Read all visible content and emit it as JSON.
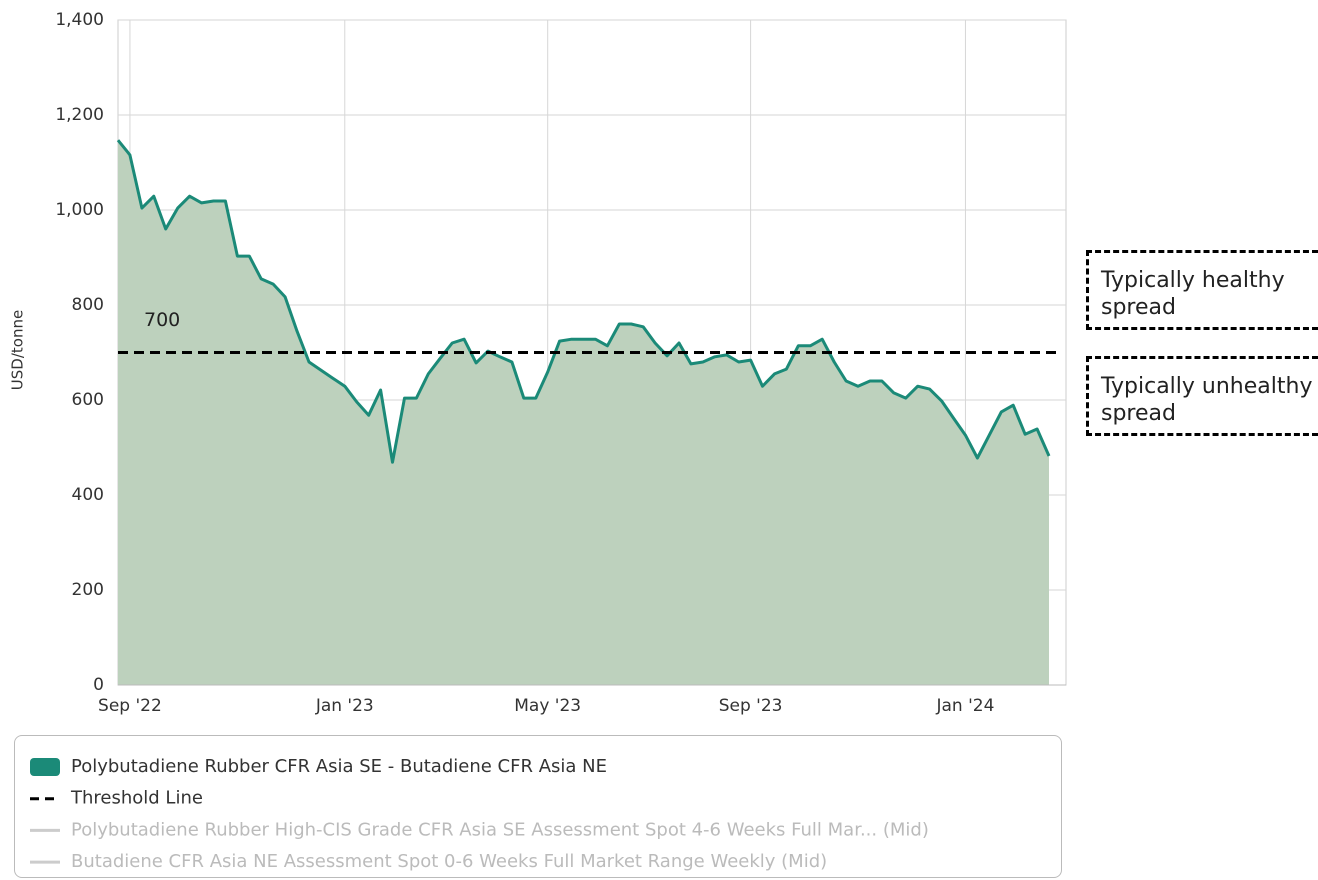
{
  "chart_data": {
    "type": "area",
    "y_label": "USD/tonne",
    "categories": [
      null,
      "Sep '22",
      null,
      null,
      null,
      null,
      null,
      null,
      null,
      null,
      null,
      null,
      null,
      null,
      null,
      null,
      null,
      null,
      null,
      "Jan '23",
      null,
      null,
      null,
      null,
      null,
      null,
      null,
      null,
      null,
      null,
      null,
      null,
      null,
      null,
      null,
      null,
      "May '23",
      null,
      null,
      null,
      null,
      null,
      null,
      null,
      null,
      null,
      null,
      null,
      null,
      null,
      null,
      null,
      null,
      "Sep '23",
      null,
      null,
      null,
      null,
      null,
      null,
      null,
      null,
      null,
      null,
      null,
      null,
      null,
      null,
      null,
      null,
      null,
      "Jan '24",
      null,
      null,
      null,
      null,
      null,
      null,
      null
    ],
    "series": [
      {
        "name": "Polybutadiene Rubber CFR Asia SE - Butadiene CFR Asia NE",
        "color": "#1b8a78",
        "fill": "#bdd1bd",
        "values": [
          1147,
          1116,
          1004,
          1029,
          960,
          1004,
          1029,
          1015,
          1019,
          1019,
          903,
          903,
          855,
          844,
          817,
          745,
          680,
          663,
          646,
          629,
          596,
          568,
          621,
          469,
          604,
          604,
          655,
          688,
          720,
          728,
          678,
          703,
          691,
          680,
          604,
          604,
          659,
          724,
          728,
          728,
          728,
          714,
          760,
          760,
          754,
          720,
          693,
          720,
          676,
          680,
          691,
          695,
          680,
          684,
          629,
          655,
          665,
          714,
          714,
          728,
          680,
          640,
          629,
          640,
          640,
          615,
          604,
          629,
          623,
          598,
          562,
          526,
          478,
          526,
          575,
          589,
          528,
          539,
          482
        ]
      }
    ],
    "threshold": {
      "name": "Threshold Line",
      "value": 700,
      "color": "#000000"
    },
    "hidden_series": [
      {
        "name": "Polybutadiene Rubber High-CIS Grade CFR Asia SE Assessment Spot 4-6 Weeks Full Mar... (Mid)",
        "color": "#cccccc"
      },
      {
        "name": "Butadiene CFR Asia NE Assessment Spot 0-6 Weeks Full Market Range Weekly (Mid)",
        "color": "#cccccc"
      }
    ],
    "annotations": [
      "Typically healthy spread",
      "Typically unhealthy spread"
    ],
    "ylim": [
      0,
      1400
    ],
    "yticks": [
      0,
      200,
      400,
      600,
      800,
      {
        "value": 1000,
        "label": "1,000"
      },
      {
        "value": 1200,
        "label": "1,200"
      },
      {
        "value": 1400,
        "label": "1,400"
      }
    ],
    "grid": true
  }
}
